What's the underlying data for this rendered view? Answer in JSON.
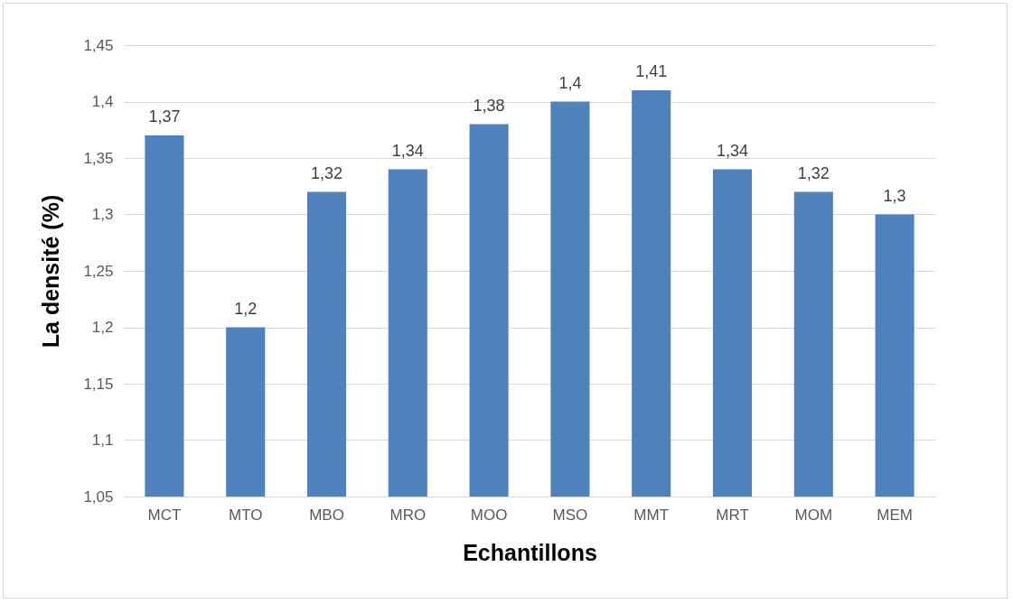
{
  "chart_data": {
    "type": "bar",
    "xlabel": "Echantillons",
    "ylabel": "La densité (%)",
    "categories": [
      "MCT",
      "MTO",
      "MBO",
      "MRO",
      "MOO",
      "MSO",
      "MMT",
      "MRT",
      "MOM",
      "MEM"
    ],
    "values": [
      1.37,
      1.2,
      1.32,
      1.34,
      1.38,
      1.4,
      1.41,
      1.34,
      1.32,
      1.3
    ],
    "value_labels": [
      "1,37",
      "1,2",
      "1,32",
      "1,34",
      "1,38",
      "1,4",
      "1,41",
      "1,34",
      "1,32",
      "1,3"
    ],
    "color": "#4f81bd",
    "ylim": [
      1.05,
      1.45
    ],
    "yticks": [
      {
        "value": 1.05,
        "label": "1,05"
      },
      {
        "value": 1.1,
        "label": "1,1"
      },
      {
        "value": 1.15,
        "label": "1,15"
      },
      {
        "value": 1.2,
        "label": "1,2"
      },
      {
        "value": 1.25,
        "label": "1,25"
      },
      {
        "value": 1.3,
        "label": "1,3"
      },
      {
        "value": 1.35,
        "label": "1,35"
      },
      {
        "value": 1.4,
        "label": "1,4"
      },
      {
        "value": 1.45,
        "label": "1,45"
      }
    ],
    "grid": "y"
  }
}
